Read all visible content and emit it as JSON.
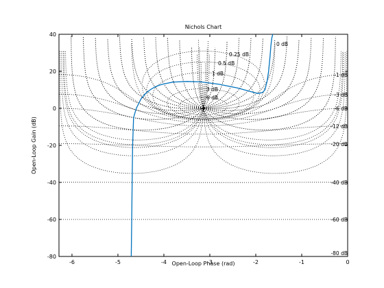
{
  "chart_data": {
    "type": "line",
    "title": "Nichols Chart",
    "xlabel": "Open-Loop Phase (rad)",
    "ylabel": "Open-Loop Gain (dB)",
    "xlim": [
      -6.283,
      0
    ],
    "ylim": [
      -80,
      40
    ],
    "x_ticks": [
      "-6",
      "-5",
      "-4",
      "-3",
      "-2",
      "-1",
      "0"
    ],
    "y_ticks": [
      "40",
      "20",
      "0",
      "-20",
      "-40",
      "-60",
      "-80"
    ],
    "grid": true,
    "grid_style": "dotted",
    "critical_point": {
      "x": -3.1416,
      "y": 0,
      "marker": "+"
    },
    "gain_contour_labels": [
      "0 dB",
      "0.25 dB",
      "0.5 dB",
      "1 dB",
      "3 dB",
      "6 dB",
      "-1 dB",
      "-3 dB",
      "-6 dB",
      "-12 dB",
      "-20 dB",
      "-40 dB",
      "-60 dB",
      "-80 dB"
    ],
    "series": [
      {
        "color": "#0072bd",
        "x": [
          -4.71,
          -4.7,
          -4.69,
          -4.68,
          -4.66,
          -4.6,
          -4.5,
          -4.4,
          -4.3,
          -4.2,
          -4.1,
          -4.0,
          -3.8,
          -3.5,
          -3.2,
          -2.8,
          -2.4,
          -2.1,
          -1.95,
          -1.85,
          -1.8,
          -1.75,
          -1.72,
          -1.69,
          -1.67,
          -1.65,
          -1.63
        ],
        "y": [
          -80,
          -60,
          -40,
          -20,
          -5,
          0,
          5,
          8,
          10,
          11.5,
          12.5,
          13.2,
          14.2,
          14.5,
          14.3,
          13.0,
          11.0,
          9.0,
          8.0,
          8.6,
          10.0,
          15.0,
          20.0,
          28.0,
          34.0,
          38.0,
          40.0
        ]
      }
    ]
  }
}
